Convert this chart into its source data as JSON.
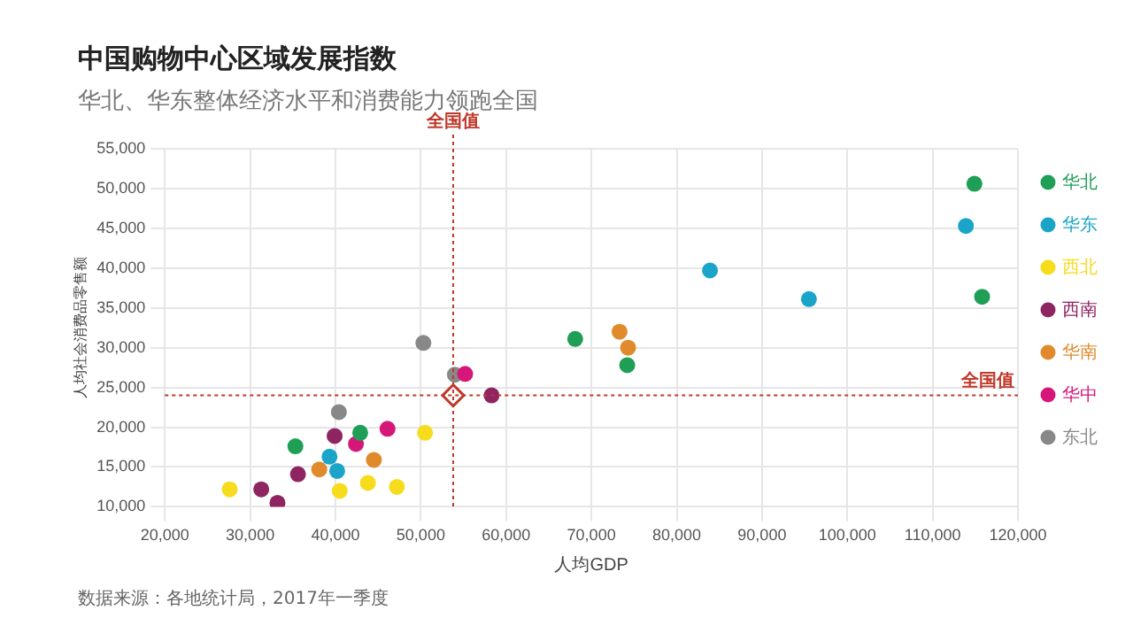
{
  "chart_data": {
    "type": "scatter",
    "title": "中国购物中心区域发展指数",
    "subtitle": "华北、华东整体经济水平和消费能力领跑全国",
    "xlabel": "人均GDP",
    "ylabel": "人均社会消费品零售额",
    "xlim": [
      20000,
      120000
    ],
    "xticks": [
      {
        "value": 20000,
        "label": "20,000"
      },
      {
        "value": 30000,
        "label": "30,000"
      },
      {
        "value": 40000,
        "label": "40,000"
      },
      {
        "value": 50000,
        "label": "50,000"
      },
      {
        "value": 60000,
        "label": "60,000"
      },
      {
        "value": 70000,
        "label": "70,000"
      },
      {
        "value": 80000,
        "label": "80,000"
      },
      {
        "value": 90000,
        "label": "90,000"
      },
      {
        "value": 100000,
        "label": "100,000"
      },
      {
        "value": 110000,
        "label": "110,000"
      },
      {
        "value": 120000,
        "label": "120,000"
      }
    ],
    "ylim": [
      10000,
      55000
    ],
    "yticks": [
      {
        "value": 10000,
        "label": "10,000"
      },
      {
        "value": 15000,
        "label": "15,000"
      },
      {
        "value": 20000,
        "label": "20,000"
      },
      {
        "value": 25000,
        "label": "25,000"
      },
      {
        "value": 30000,
        "label": "30,000"
      },
      {
        "value": 35000,
        "label": "35,000"
      },
      {
        "value": 40000,
        "label": "40,000"
      },
      {
        "value": 45000,
        "label": "45,000"
      },
      {
        "value": 50000,
        "label": "50,000"
      },
      {
        "value": 55000,
        "label": "55,000"
      }
    ],
    "grid": true,
    "legend": "right",
    "marker": "circle",
    "series": [
      {
        "name": "华北",
        "color": "#1f9e56",
        "x": [
          114900,
          115800,
          68100,
          74200,
          42900,
          35300
        ],
        "values": [
          50600,
          36400,
          31100,
          27800,
          19300,
          17600
        ]
      },
      {
        "name": "华东",
        "color": "#1aa5c8",
        "x": [
          113900,
          83900,
          95500,
          39300,
          40200
        ],
        "values": [
          45300,
          39700,
          36100,
          16300,
          14500
        ]
      },
      {
        "name": "西北",
        "color": "#f7dc1e",
        "x": [
          50500,
          27600,
          40500,
          43800,
          47200
        ],
        "values": [
          19300,
          12200,
          12000,
          13000,
          12500
        ]
      },
      {
        "name": "西南",
        "color": "#8e2461",
        "x": [
          58300,
          39900,
          35600,
          31300,
          33200
        ],
        "values": [
          24000,
          18900,
          14100,
          12200,
          10500
        ]
      },
      {
        "name": "华南",
        "color": "#e08a2c",
        "x": [
          73300,
          74300,
          44500,
          38100
        ],
        "values": [
          32000,
          30000,
          15900,
          14700
        ]
      },
      {
        "name": "华中",
        "color": "#d6177a",
        "x": [
          55200,
          46100,
          42400
        ],
        "values": [
          26700,
          19800,
          17900
        ]
      },
      {
        "name": "东北",
        "color": "#888888",
        "x": [
          50300,
          54000,
          40400
        ],
        "values": [
          30600,
          26600,
          21900
        ]
      },
      {
        "type": "scatter",
        "marker": "diamond",
        "color": "#c0392b",
        "x": [
          53800
        ],
        "values": [
          24000
        ]
      }
    ],
    "ref_lines": [
      {
        "axis": "x",
        "value": 53800,
        "label": "全国值",
        "color": "#c0392b",
        "line_style": "dotted"
      },
      {
        "axis": "y",
        "value": 24000,
        "label": "全国值",
        "color": "#c0392b",
        "line_style": "dotted"
      }
    ],
    "annotations": [
      "数据来源：各地统计局，2017年一季度"
    ]
  }
}
